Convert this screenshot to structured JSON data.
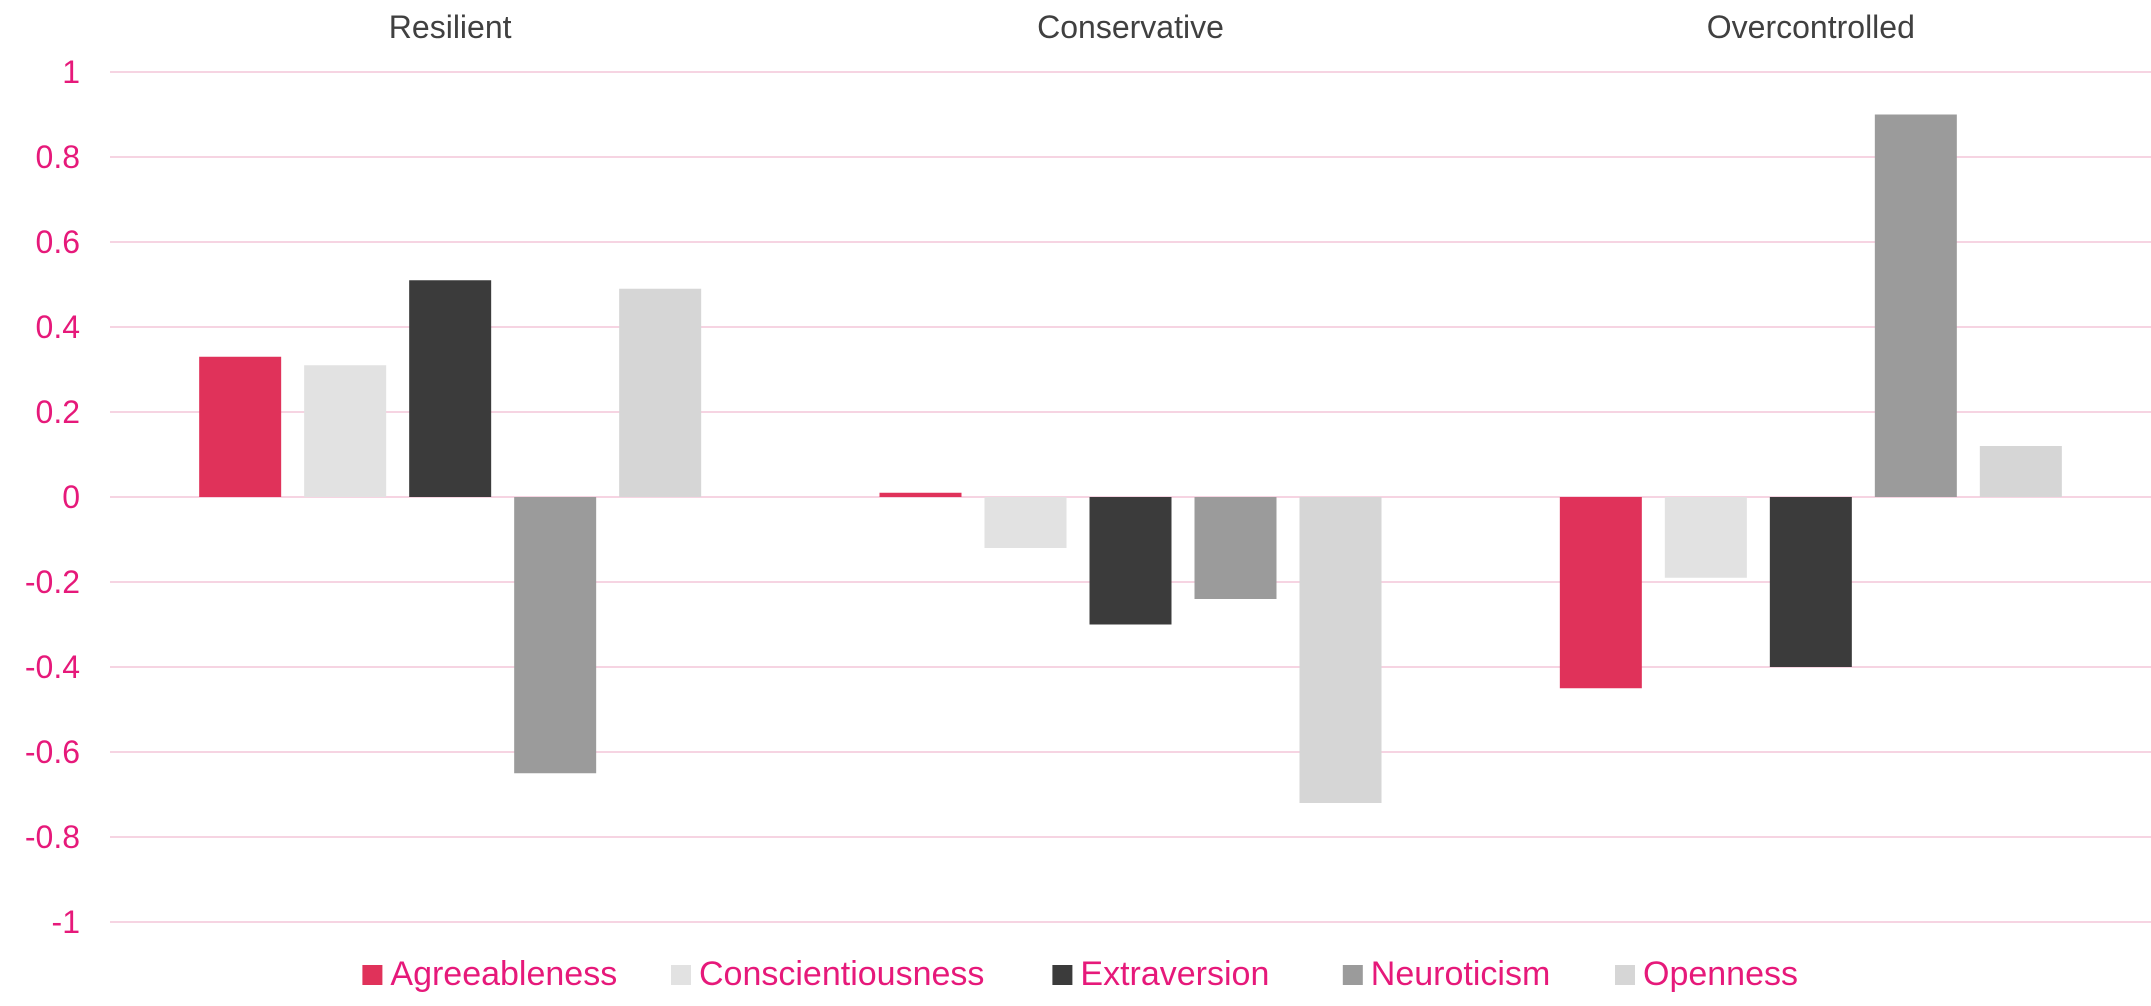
{
  "chart_data": {
    "type": "bar",
    "title": "",
    "xlabel": "",
    "ylabel": "",
    "categories": [
      "Resilient",
      "Conservative",
      "Overcontrolled"
    ],
    "series": [
      {
        "name": "Agreeableness",
        "color": "#e0325a",
        "values": [
          0.33,
          0.01,
          -0.45
        ]
      },
      {
        "name": "Conscientiousness",
        "color": "#e2e2e2",
        "values": [
          0.31,
          -0.12,
          -0.19
        ]
      },
      {
        "name": "Extraversion",
        "color": "#3b3b3b",
        "values": [
          0.51,
          -0.3,
          -0.4
        ]
      },
      {
        "name": "Neuroticism",
        "color": "#9b9b9b",
        "values": [
          -0.65,
          -0.24,
          0.9
        ]
      },
      {
        "name": "Openness",
        "color": "#d6d6d6",
        "values": [
          0.49,
          -0.72,
          0.12
        ]
      }
    ],
    "ylim": [
      -1,
      1
    ],
    "yticks": [
      "1",
      "0.8",
      "0.6",
      "0.4",
      "0.2",
      "0",
      "-0.2",
      "-0.4",
      "-0.6",
      "-0.8",
      "-1"
    ],
    "category_labels_position": "top",
    "grid": true,
    "legend_position": "bottom"
  }
}
